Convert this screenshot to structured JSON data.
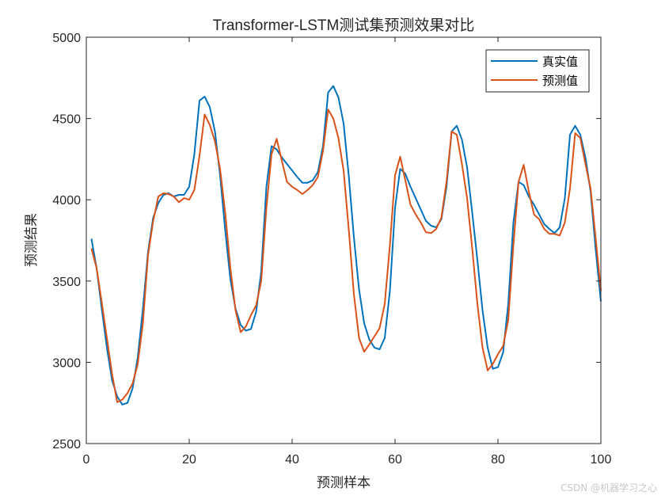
{
  "chart_data": {
    "type": "line",
    "title": "Transformer-LSTM测试集预测效果对比",
    "xlabel": "预测样本",
    "ylabel": "预测结果",
    "xlim": [
      0,
      100
    ],
    "ylim": [
      2500,
      5000
    ],
    "xticks": [
      0,
      20,
      40,
      60,
      80,
      100
    ],
    "yticks": [
      2500,
      3000,
      3500,
      4000,
      4500,
      5000
    ],
    "grid": false,
    "legend_position": "northeast",
    "x": [
      1,
      2,
      3,
      4,
      5,
      6,
      7,
      8,
      9,
      10,
      11,
      12,
      13,
      14,
      15,
      16,
      17,
      18,
      19,
      20,
      21,
      22,
      23,
      24,
      25,
      26,
      27,
      28,
      29,
      30,
      31,
      32,
      33,
      34,
      35,
      36,
      37,
      38,
      39,
      40,
      41,
      42,
      43,
      44,
      45,
      46,
      47,
      48,
      49,
      50,
      51,
      52,
      53,
      54,
      55,
      56,
      57,
      58,
      59,
      60,
      61,
      62,
      63,
      64,
      65,
      66,
      67,
      68,
      69,
      70,
      71,
      72,
      73,
      74,
      75,
      76,
      77,
      78,
      79,
      80,
      81,
      82,
      83,
      84,
      85,
      86,
      87,
      88,
      89,
      90,
      91,
      92,
      93,
      94,
      95,
      96,
      97,
      98,
      99,
      100
    ],
    "series": [
      {
        "name": "真实值",
        "color": "#0072BD",
        "values": [
          3760,
          3580,
          3330,
          3090,
          2890,
          2790,
          2740,
          2750,
          2840,
          3030,
          3330,
          3680,
          3890,
          3980,
          4030,
          4040,
          4020,
          4030,
          4030,
          4080,
          4280,
          4610,
          4635,
          4570,
          4420,
          4150,
          3810,
          3510,
          3330,
          3230,
          3195,
          3205,
          3310,
          3560,
          4080,
          4330,
          4310,
          4260,
          4220,
          4180,
          4140,
          4105,
          4105,
          4120,
          4170,
          4330,
          4660,
          4700,
          4630,
          4470,
          4150,
          3770,
          3450,
          3240,
          3140,
          3090,
          3080,
          3150,
          3440,
          3950,
          4190,
          4160,
          4080,
          4010,
          3940,
          3870,
          3840,
          3830,
          3880,
          4080,
          4420,
          4455,
          4370,
          4200,
          3920,
          3630,
          3320,
          3090,
          2960,
          2970,
          3060,
          3360,
          3860,
          4110,
          4090,
          4020,
          3970,
          3910,
          3850,
          3820,
          3795,
          3830,
          4010,
          4400,
          4455,
          4400,
          4260,
          4050,
          3690,
          3375
        ]
      },
      {
        "name": "预测值",
        "color": "#D95319",
        "values": [
          3700,
          3580,
          3370,
          3150,
          2930,
          2755,
          2770,
          2810,
          2870,
          2990,
          3240,
          3660,
          3870,
          4020,
          4040,
          4035,
          4020,
          3985,
          4010,
          4000,
          4060,
          4270,
          4525,
          4460,
          4360,
          4190,
          3920,
          3580,
          3320,
          3185,
          3220,
          3290,
          3350,
          3500,
          3950,
          4280,
          4375,
          4240,
          4110,
          4080,
          4060,
          4035,
          4060,
          4090,
          4140,
          4300,
          4555,
          4500,
          4380,
          4180,
          3820,
          3420,
          3150,
          3065,
          3110,
          3160,
          3210,
          3360,
          3720,
          4150,
          4265,
          4120,
          3970,
          3910,
          3860,
          3800,
          3795,
          3820,
          3890,
          4110,
          4420,
          4400,
          4220,
          4010,
          3700,
          3360,
          3090,
          2950,
          2990,
          3050,
          3100,
          3260,
          3720,
          4110,
          4215,
          4050,
          3910,
          3880,
          3820,
          3790,
          3790,
          3780,
          3860,
          4070,
          4410,
          4380,
          4220,
          4070,
          3760,
          3440
        ]
      }
    ]
  },
  "watermark": "CSDN @机器学习之心"
}
